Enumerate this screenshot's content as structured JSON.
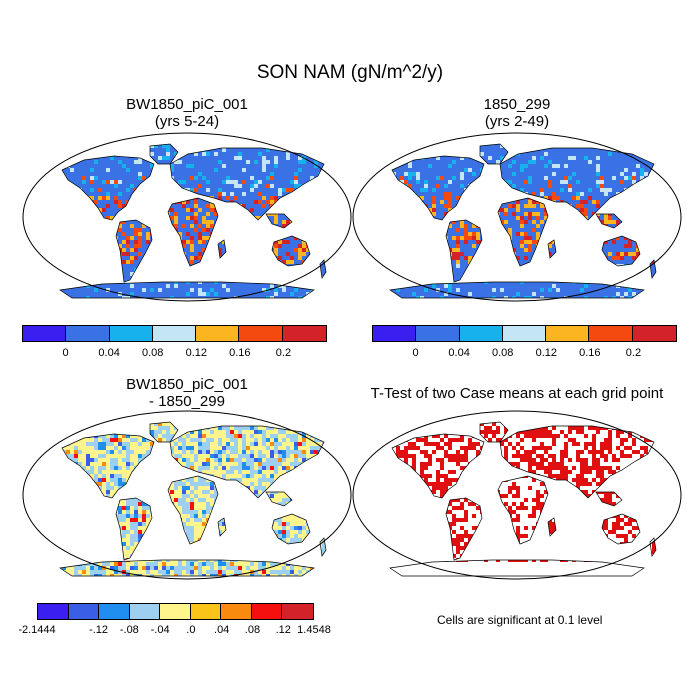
{
  "title": "SON NAM (gN/m^2/y)",
  "panels": [
    {
      "id": "case1",
      "title_line1": "BW1850_piC_001",
      "title_line2": "(yrs 5-24)",
      "fill": "case"
    },
    {
      "id": "case2",
      "title_line1": "1850_299",
      "title_line2": "(yrs 2-49)",
      "fill": "case"
    },
    {
      "id": "diff",
      "title_line1": "BW1850_piC_001",
      "title_line2": "- 1850_299",
      "fill": "diff"
    },
    {
      "id": "ttest",
      "title_line1": "T-Test of two Case means at each grid point",
      "title_line2": "",
      "fill": "ttest"
    }
  ],
  "colorbar_case": {
    "colors": [
      "#3a1ff0",
      "#3a72e6",
      "#17b2ee",
      "#c4e6f4",
      "#fbb520",
      "#f54a0f",
      "#d4222a"
    ],
    "labels": [
      "0",
      "0.04",
      "0.08",
      "0.12",
      "0.16",
      "0.2"
    ]
  },
  "colorbar_diff": {
    "colors": [
      "#3a1ff0",
      "#3a5ee6",
      "#1f8eee",
      "#9ccff0",
      "#fff58c",
      "#fbc41a",
      "#f88a10",
      "#f51010",
      "#d4222a"
    ],
    "labels": [
      "-2.1444",
      "-.12",
      "-.08",
      "-.04",
      ".0",
      ".04",
      ".08",
      ".12",
      "1.4548"
    ]
  },
  "ttest_note": "Cells are significant at 0.1 level",
  "ttest_color": "#e01010"
}
